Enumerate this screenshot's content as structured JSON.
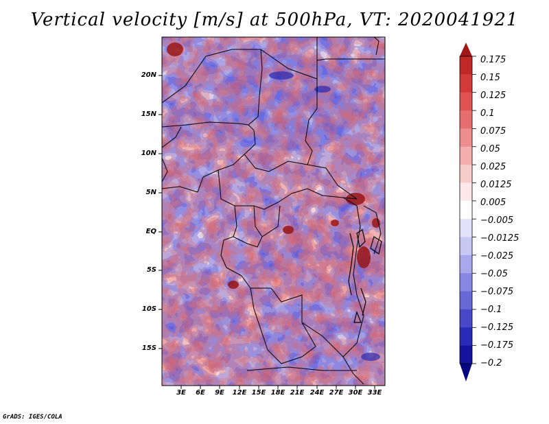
{
  "title": "Vertical velocity [m/s] at 500hPa, VT: 2020041921",
  "credit": "GrADS: IGES/COLA",
  "map": {
    "lat_labels": [
      "20N",
      "15N",
      "10N",
      "5N",
      "EQ",
      "5S",
      "10S",
      "15S"
    ],
    "lon_labels": [
      "3E",
      "6E",
      "9E",
      "12E",
      "15E",
      "18E",
      "21E",
      "24E",
      "27E",
      "30E",
      "33E"
    ]
  },
  "colorbar": {
    "levels": [
      "0.175",
      "0.15",
      "0.125",
      "0.1",
      "0.075",
      "0.05",
      "0.025",
      "0.0125",
      "0.005",
      "−0.005",
      "−0.0125",
      "−0.025",
      "−0.05",
      "−0.075",
      "−0.1",
      "−0.125",
      "−0.175",
      "−0.2"
    ],
    "colors": [
      "#a01818",
      "#c02828",
      "#d23a3a",
      "#de5252",
      "#e66e6e",
      "#ee8e8e",
      "#f4aeae",
      "#f9cccc",
      "#fce8e8",
      "#ffffff",
      "#e2e2fa",
      "#c8c8f4",
      "#a8a8ec",
      "#8888e2",
      "#6868d6",
      "#4848c8",
      "#2a2ab8",
      "#14149e",
      "#06067e"
    ]
  }
}
